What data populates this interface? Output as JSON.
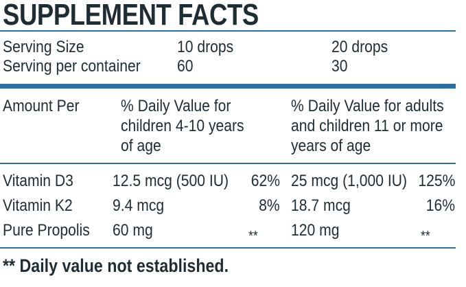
{
  "title": "SUPPLEMENT FACTS",
  "serving": {
    "size_label": "Serving Size",
    "size_children": "10 drops",
    "size_adults": "20 drops",
    "per_container_label": "Serving per container",
    "per_container_children": "60",
    "per_container_adults": "30"
  },
  "header": {
    "amount_per": "Amount Per",
    "children_line1": "% Daily Value for",
    "children_line2": "children 4-10 years",
    "children_line3": "of age",
    "adults_line1": "% Daily Value for adults",
    "adults_line2": "and children 11 or more",
    "adults_line3": "years of age"
  },
  "nutrients": [
    {
      "name": "Vitamin D3",
      "children_amount": "12.5 mcg (500 IU)",
      "children_dv": "62%",
      "adults_amount": "25 mcg (1,000 IU)",
      "adults_dv": "125%"
    },
    {
      "name": "Vitamin K2",
      "children_amount": "9.4 mcg",
      "children_dv": "8%",
      "adults_amount": "18.7 mcg",
      "adults_dv": "16%"
    },
    {
      "name": "Pure Propolis",
      "children_amount": "60 mg",
      "children_dv": "**",
      "adults_amount": "120 mg",
      "adults_dv": "**"
    }
  ],
  "footnote": "** Daily value not established.",
  "colors": {
    "rule": "#2b6fa3",
    "text": "#1e2c34"
  }
}
